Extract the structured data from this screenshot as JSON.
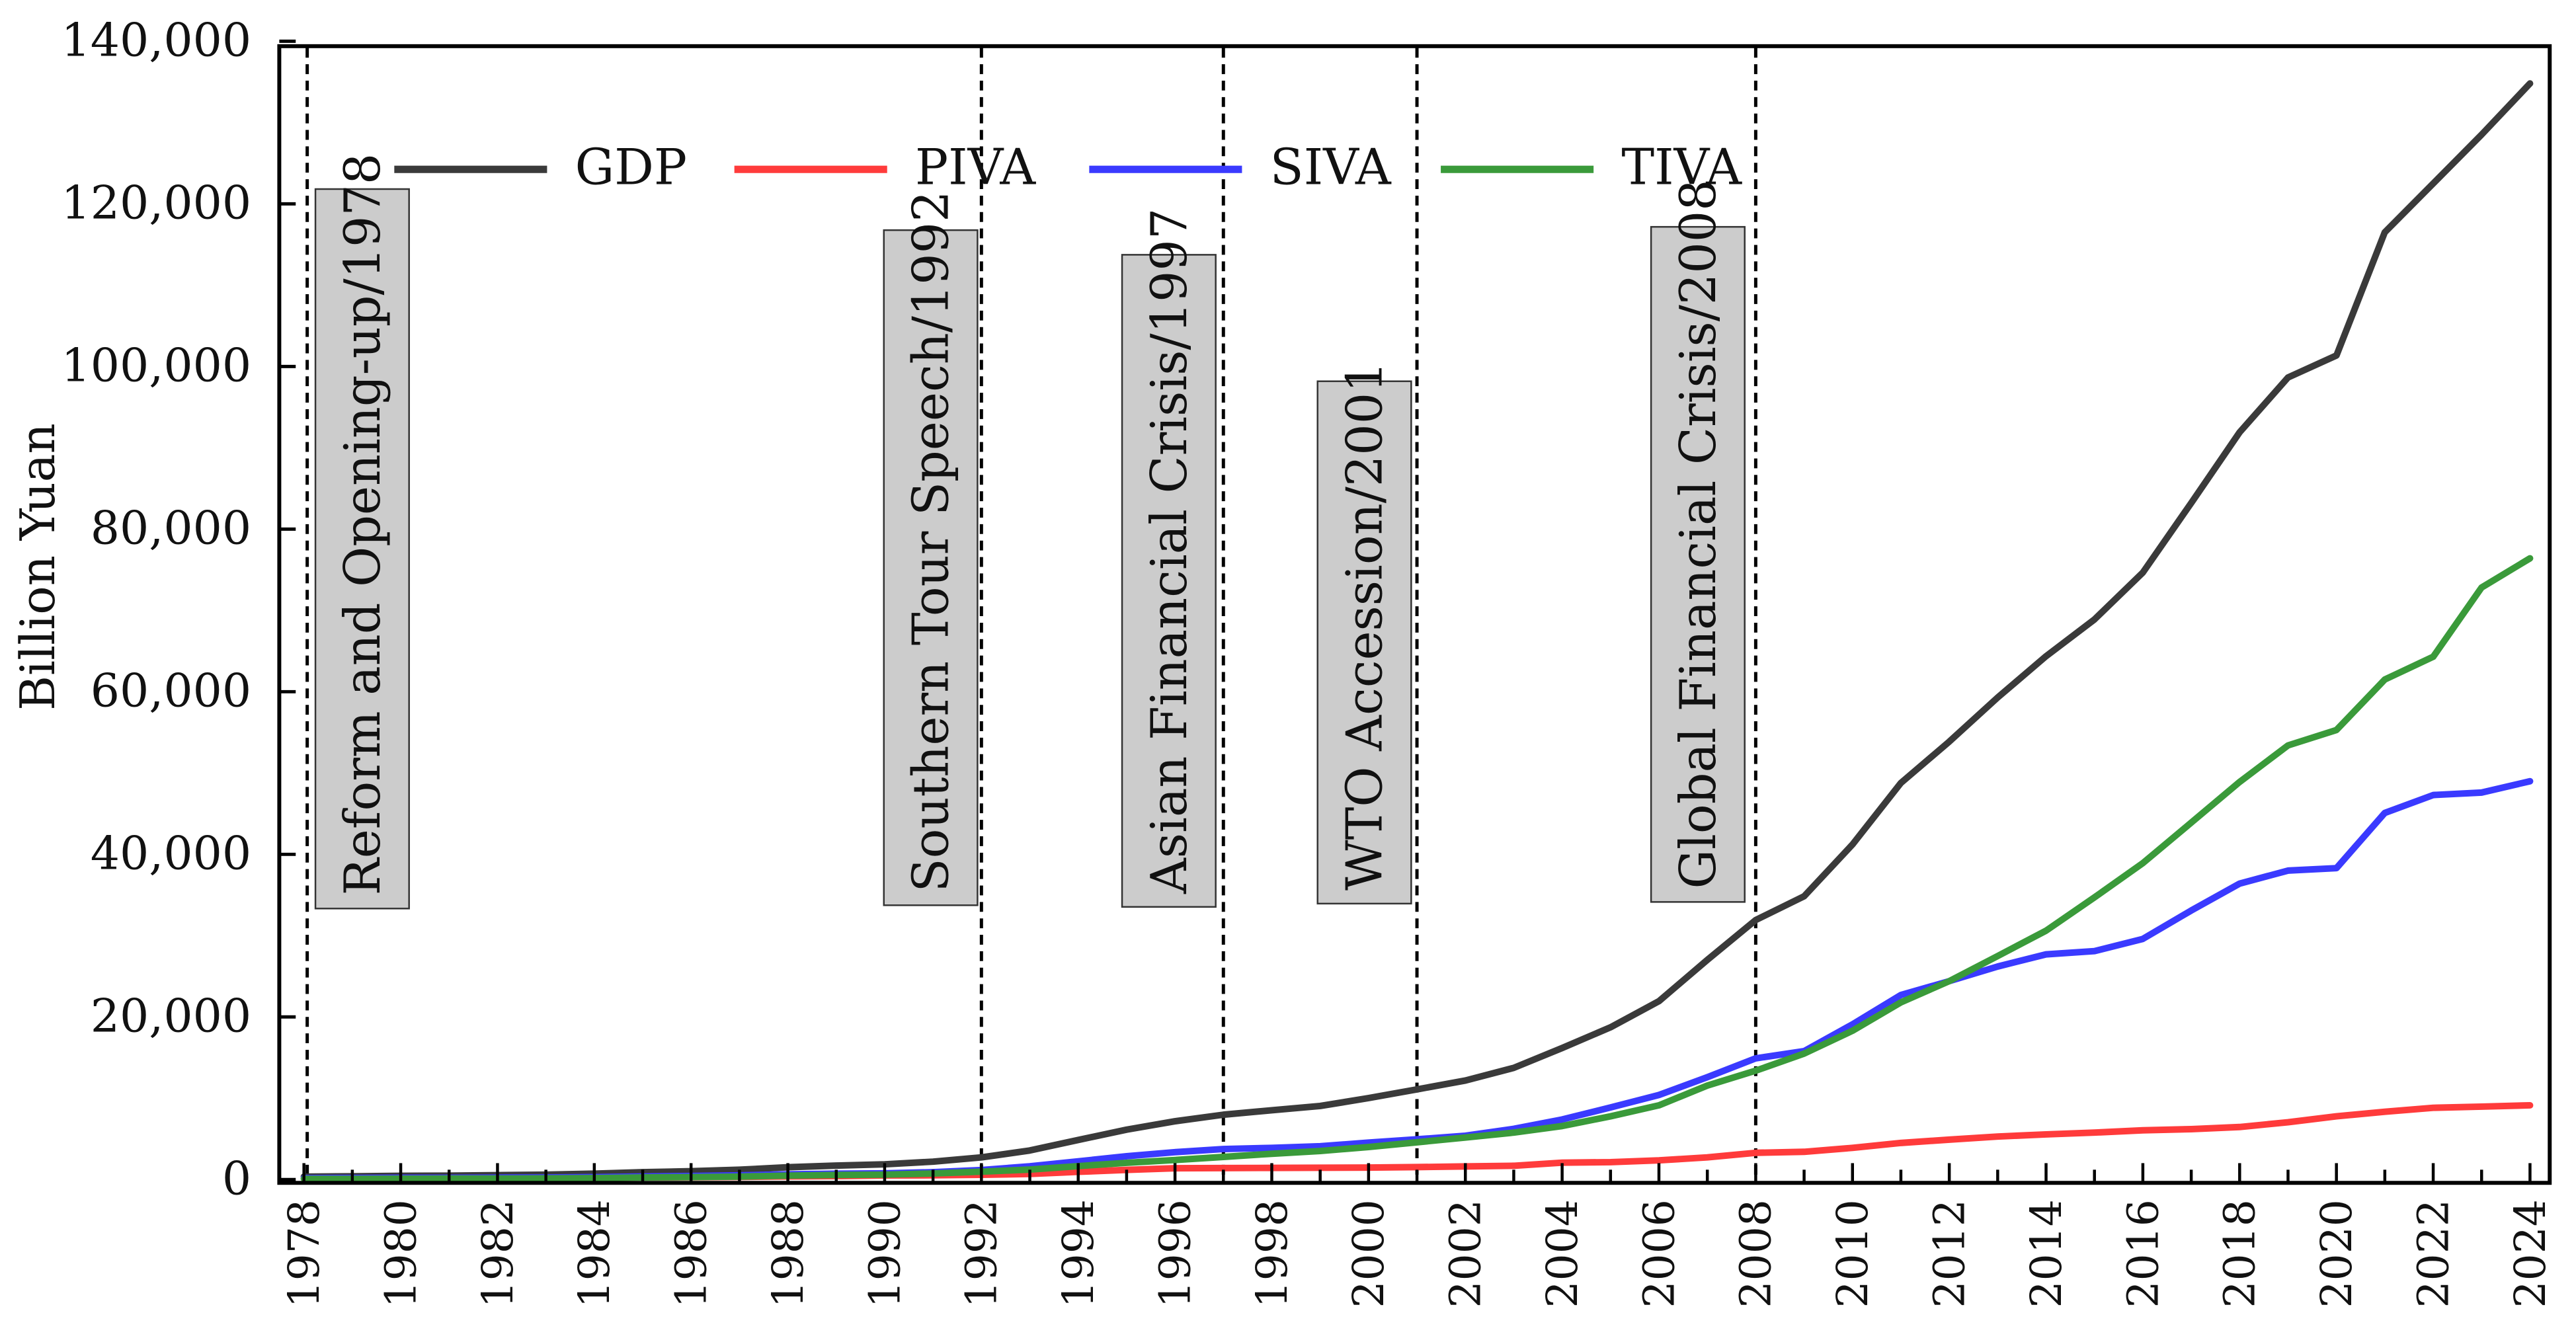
{
  "chart_data": {
    "type": "line",
    "title": "",
    "xlabel": "",
    "ylabel": "Billion Yuan",
    "xlim": [
      1978,
      2024
    ],
    "ylim": [
      0,
      140000
    ],
    "grid": false,
    "legend_position": "top-left",
    "y_ticks": [
      0,
      20000,
      40000,
      60000,
      80000,
      100000,
      120000,
      140000
    ],
    "y_tick_labels": [
      "0",
      "20,000",
      "40,000",
      "60,000",
      "80,000",
      "100,000",
      "120,000",
      "140,000"
    ],
    "x_tick_labels": [
      "1978",
      "1980",
      "1982",
      "1984",
      "1986",
      "1988",
      "1990",
      "1992",
      "1994",
      "1996",
      "1998",
      "2000",
      "2002",
      "2004",
      "2006",
      "2008",
      "2010",
      "2012",
      "2014",
      "2016",
      "2018",
      "2020",
      "2022",
      "2024"
    ],
    "x": [
      1978,
      1979,
      1980,
      1981,
      1982,
      1983,
      1984,
      1985,
      1986,
      1987,
      1988,
      1989,
      1990,
      1991,
      1992,
      1993,
      1994,
      1995,
      1996,
      1997,
      1998,
      1999,
      2000,
      2001,
      2002,
      2003,
      2004,
      2005,
      2006,
      2007,
      2008,
      2009,
      2010,
      2011,
      2012,
      2013,
      2014,
      2015,
      2016,
      2017,
      2018,
      2019,
      2020,
      2021,
      2022,
      2023,
      2024
    ],
    "series": [
      {
        "name": "GDP",
        "color": "#3a3a3a",
        "values": [
          368,
          406,
          459,
          494,
          537,
          602,
          724,
          904,
          1030,
          1217,
          1517,
          1718,
          1887,
          2201,
          2719,
          3567,
          4864,
          6134,
          7181,
          7972,
          8520,
          9056,
          10028,
          11086,
          12172,
          13742,
          16184,
          18732,
          21944,
          27009,
          31924,
          34852,
          41211,
          48794,
          53858,
          59296,
          64356,
          68886,
          74640,
          83204,
          91928,
          98652,
          101357,
          116500,
          122500,
          128500,
          134800
        ]
      },
      {
        "name": "PIVA",
        "color": "#ff3b3b",
        "values": [
          103,
          127,
          136,
          155,
          178,
          196,
          232,
          256,
          279,
          323,
          383,
          423,
          506,
          534,
          587,
          696,
          957,
          1199,
          1384,
          1421,
          1444,
          1447,
          1472,
          1541,
          1612,
          1692,
          2087,
          2142,
          2364,
          2736,
          3300,
          3412,
          3901,
          4509,
          4908,
          5303,
          5562,
          5777,
          6067,
          6210,
          6474,
          7047,
          7775,
          8338,
          8835,
          8976,
          9141
        ]
      },
      {
        "name": "SIVA",
        "color": "#3a3aff",
        "values": [
          175,
          192,
          219,
          226,
          238,
          265,
          311,
          387,
          451,
          525,
          651,
          728,
          772,
          910,
          1170,
          1642,
          2245,
          2868,
          3383,
          3755,
          3900,
          4103,
          4555,
          4951,
          5390,
          6244,
          7390,
          8860,
          10400,
          12580,
          14900,
          15800,
          19100,
          22700,
          24400,
          26200,
          27700,
          28100,
          29600,
          33100,
          36400,
          38000,
          38300,
          45100,
          47300,
          47600,
          49000
        ]
      },
      {
        "name": "TIVA",
        "color": "#3a9a3a",
        "values": [
          90,
          88,
          104,
          113,
          121,
          141,
          181,
          259,
          300,
          368,
          483,
          567,
          609,
          756,
          962,
          1229,
          1662,
          2067,
          2414,
          2796,
          3177,
          3506,
          4000,
          4590,
          5170,
          5780,
          6590,
          7780,
          9140,
          11560,
          13400,
          15500,
          18300,
          21800,
          24400,
          27500,
          30600,
          34700,
          38900,
          43900,
          48900,
          53400,
          55300,
          61500,
          64300,
          72800,
          76400
        ]
      }
    ],
    "annotations": [
      {
        "year": 1978,
        "label": "Reform and Opening-up/1978"
      },
      {
        "year": 1992,
        "label": "Southern Tour Speech/1992"
      },
      {
        "year": 1997,
        "label": "Asian Financial Crisis/1997"
      },
      {
        "year": 2001,
        "label": "WTO Accession/2001"
      },
      {
        "year": 2008,
        "label": "Global Financial Crisis/2008"
      }
    ]
  }
}
